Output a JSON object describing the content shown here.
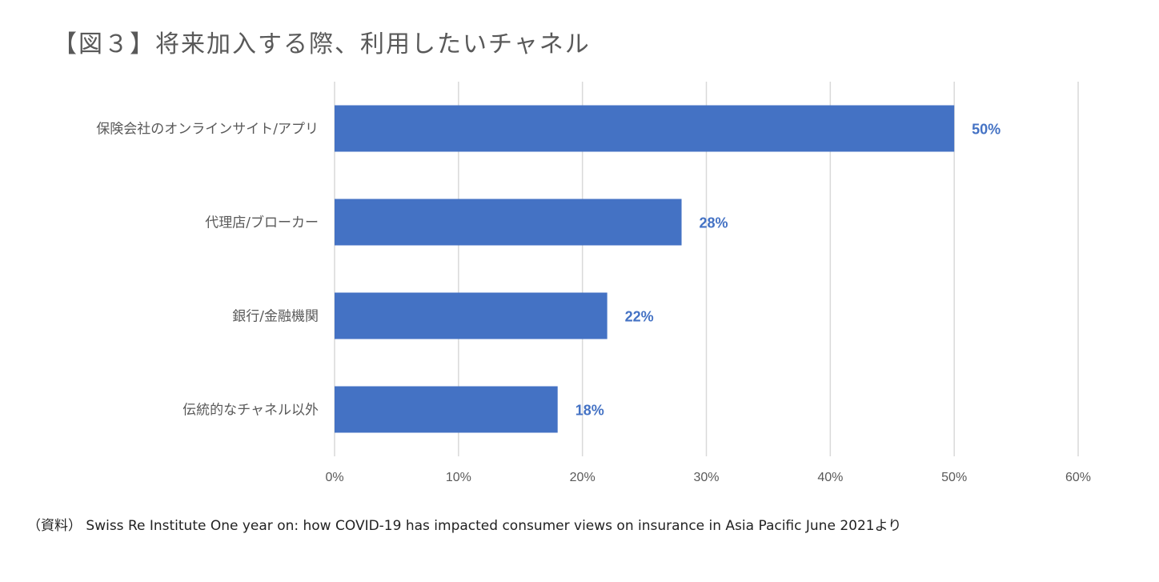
{
  "chart_data": {
    "type": "bar",
    "orientation": "horizontal",
    "title": "【図３】将来加入する際、利用したいチャネル",
    "categories": [
      "保険会社のオンラインサイト/アプリ",
      "代理店/ブローカー",
      "銀行/金融機関",
      "伝統的なチャネル以外"
    ],
    "values": [
      50,
      28,
      22,
      18
    ],
    "value_labels": [
      "50%",
      "28%",
      "22%",
      "18%"
    ],
    "xlim": [
      0,
      60
    ],
    "xticks": [
      0,
      10,
      20,
      30,
      40,
      50,
      60
    ],
    "xtick_labels": [
      "0%",
      "10%",
      "20%",
      "30%",
      "40%",
      "50%",
      "60%"
    ],
    "xlabel": "",
    "ylabel": "",
    "grid": "vertical",
    "legend": "none",
    "bar_color": "#4472C4",
    "label_color": "#4472C4",
    "grid_color": "#D9D9D9",
    "source": "（資料） Swiss Re Institute  One year on: how COVID-19 has impacted consumer views on insurance in Asia Pacific   June 2021より"
  }
}
